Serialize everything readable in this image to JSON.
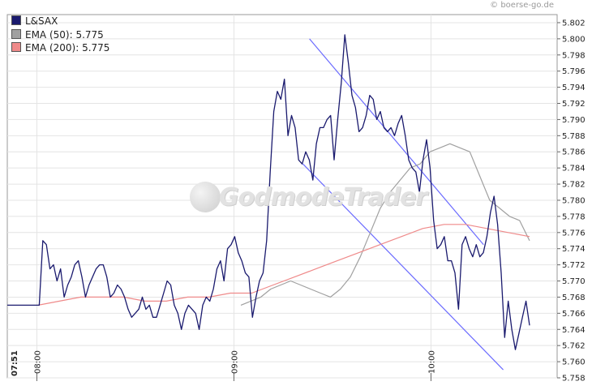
{
  "credit": "© boerse-go.de",
  "logo_text": "GodmodeTrader",
  "legend": [
    {
      "label": "L&SAX",
      "color": "#1a1a6e"
    },
    {
      "label": "EMA (50): 5.775",
      "color": "#a0a0a0"
    },
    {
      "label": "EMA (200): 5.775",
      "color": "#ef8a8a"
    }
  ],
  "start_time_label": "07:51",
  "chart_data": {
    "type": "line",
    "ylim": [
      5.758,
      5.803
    ],
    "y_ticks": [
      "5.758",
      "5.760",
      "5.762",
      "5.764",
      "5.766",
      "5.768",
      "5.770",
      "5.772",
      "5.774",
      "5.776",
      "5.778",
      "5.780",
      "5.782",
      "5.784",
      "5.786",
      "5.788",
      "5.790",
      "5.792",
      "5.794",
      "5.796",
      "5.798",
      "5.800",
      "5.802"
    ],
    "x_ticks": [
      "08:00",
      "09:00",
      "10:00"
    ],
    "grid": true,
    "legend_placement": "top-left",
    "series": [
      {
        "name": "L&SAX",
        "color": "#1a1a6e",
        "values": [
          5.767,
          5.767,
          5.767,
          5.767,
          5.767,
          5.767,
          5.767,
          5.767,
          5.767,
          5.767,
          5.775,
          5.7745,
          5.7715,
          5.772,
          5.77,
          5.7715,
          5.768,
          5.7695,
          5.7705,
          5.772,
          5.7725,
          5.7705,
          5.768,
          5.7695,
          5.7705,
          5.7715,
          5.772,
          5.772,
          5.7705,
          5.768,
          5.7685,
          5.7695,
          5.769,
          5.768,
          5.7665,
          5.7655,
          5.766,
          5.7665,
          5.768,
          5.7665,
          5.767,
          5.7655,
          5.7655,
          5.767,
          5.7685,
          5.77,
          5.7695,
          5.767,
          5.766,
          5.764,
          5.766,
          5.767,
          5.7665,
          5.766,
          5.764,
          5.767,
          5.768,
          5.7675,
          5.769,
          5.7715,
          5.7725,
          5.77,
          5.774,
          5.7745,
          5.7755,
          5.7735,
          5.7725,
          5.771,
          5.7705,
          5.7655,
          5.768,
          5.77,
          5.771,
          5.775,
          5.7835,
          5.791,
          5.7935,
          5.7925,
          5.795,
          5.788,
          5.7905,
          5.789,
          5.785,
          5.7845,
          5.786,
          5.785,
          5.7825,
          5.787,
          5.789,
          5.789,
          5.79,
          5.7905,
          5.785,
          5.79,
          5.7945,
          5.8005,
          5.797,
          5.793,
          5.7915,
          5.7885,
          5.789,
          5.7905,
          5.793,
          5.7925,
          5.79,
          5.791,
          5.789,
          5.7885,
          5.789,
          5.788,
          5.7895,
          5.7905,
          5.788,
          5.785,
          5.784,
          5.7835,
          5.781,
          5.785,
          5.7875,
          5.784,
          5.7775,
          5.774,
          5.7745,
          5.7755,
          5.7725,
          5.7725,
          5.771,
          5.7665,
          5.7745,
          5.7755,
          5.774,
          5.773,
          5.7745,
          5.773,
          5.7735,
          5.7755,
          5.7785,
          5.7805,
          5.777,
          5.771,
          5.763,
          5.7675,
          5.764,
          5.7615,
          5.7635,
          5.7655,
          5.7675,
          5.7645
        ]
      },
      {
        "name": "EMA (50): 5.775",
        "color": "#a0a0a0",
        "values": [
          5.767,
          5.7675,
          5.768,
          5.769,
          5.7695,
          5.77,
          5.7695,
          5.769,
          5.7685,
          5.768,
          5.769,
          5.7705,
          5.773,
          5.776,
          5.779,
          5.781,
          5.7825,
          5.784,
          5.7845,
          5.786,
          5.7865,
          5.787,
          5.7865,
          5.786,
          5.783,
          5.78,
          5.779,
          5.778,
          5.7775,
          5.775
        ]
      },
      {
        "name": "EMA (200): 5.775",
        "color": "#ef8a8a",
        "values": [
          5.767,
          5.7675,
          5.768,
          5.768,
          5.768,
          5.7675,
          5.7675,
          5.768,
          5.768,
          5.7685,
          5.7685,
          5.7695,
          5.7705,
          5.7715,
          5.7725,
          5.7735,
          5.7745,
          5.7755,
          5.7765,
          5.777,
          5.777,
          5.7765,
          5.776,
          5.7755
        ]
      }
    ],
    "trendlines": [
      {
        "x": [
          "09:23",
          "10:16"
        ],
        "y": [
          5.8,
          5.7745
        ]
      },
      {
        "x": [
          "09:21",
          "10:22"
        ],
        "y": [
          5.7845,
          5.759
        ]
      }
    ]
  }
}
